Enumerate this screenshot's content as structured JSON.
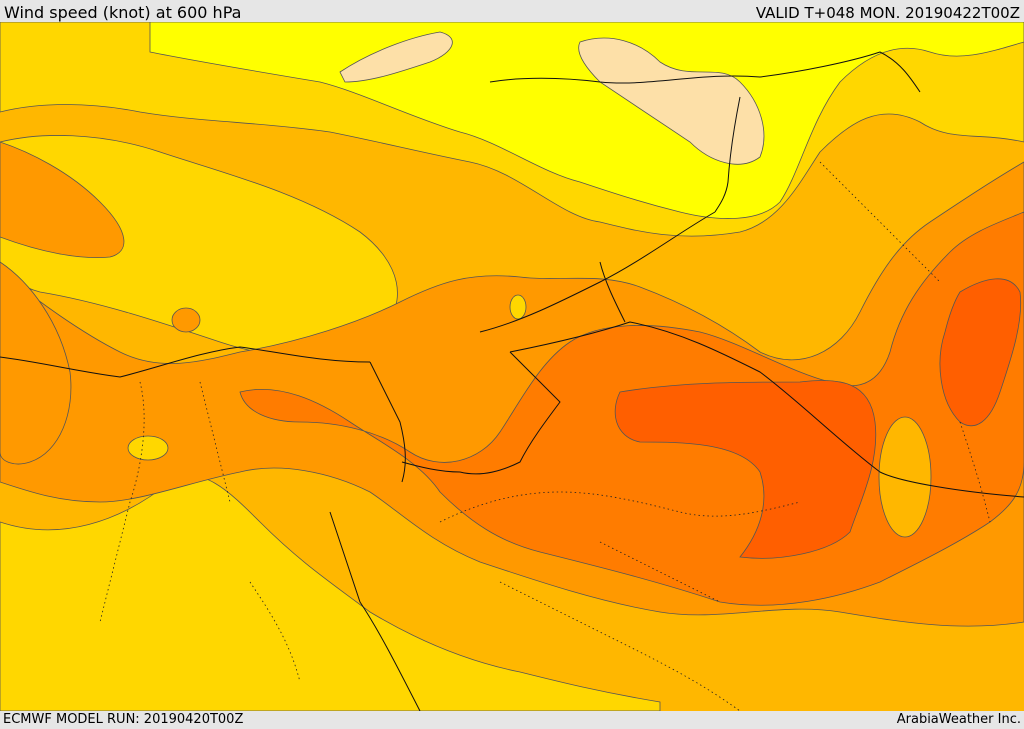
{
  "header": {
    "title": "Wind speed (knot) at 600 hPa",
    "valid_time": "VALID T+048 MON. 20190422T00Z"
  },
  "footer": {
    "model_run": "ECMWF MODEL RUN: 20190420T00Z",
    "credit": "ArabiaWeather Inc."
  },
  "map": {
    "level": "600 hPa",
    "variable": "wind speed",
    "unit": "knot",
    "shading_colors": {
      "band_lightest": "#fde0a8",
      "band_1": "#ffff00",
      "band_2": "#ffd700",
      "band_3": "#ffb700",
      "band_4": "#ff9900",
      "band_5": "#ff7c00",
      "band_6": "#ff5f00"
    }
  }
}
